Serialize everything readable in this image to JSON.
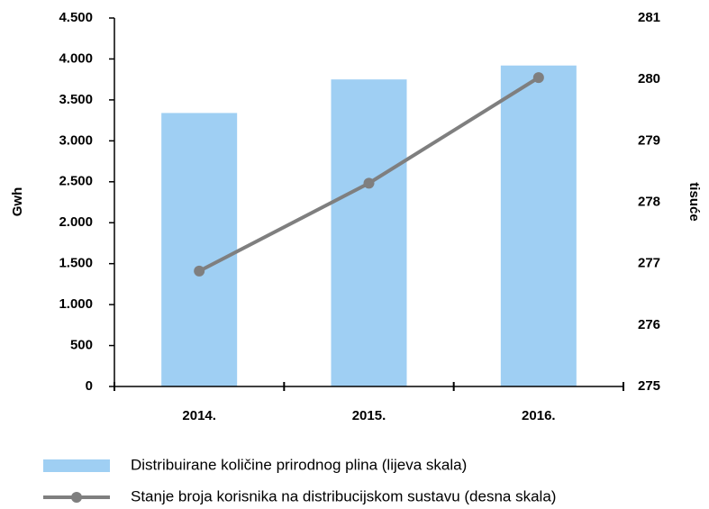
{
  "chart_data": {
    "type": "bar",
    "categories": [
      "2014.",
      "2015.",
      "2016."
    ],
    "series": [
      {
        "name": "Distribuirane količine prirodnog plina (lijeva skala)",
        "type": "bar",
        "color": "#9fcff3",
        "values": [
          3340,
          3750,
          3920
        ]
      },
      {
        "name": "Stanje broja korisnika na distribucijskom sustavu (desna skala)",
        "type": "line",
        "axis": "y2",
        "color": "#7f7f7f",
        "values": [
          276.88,
          278.31,
          280.03
        ]
      }
    ],
    "ylabel": "Gwh",
    "y2label": "tisuće",
    "ylim": [
      0,
      4500
    ],
    "yticks": [
      0,
      500,
      {
        "value": 1000,
        "label": "1.000"
      },
      {
        "value": 1500,
        "label": "1.500"
      },
      {
        "value": 2000,
        "label": "2.000"
      },
      {
        "value": 2500,
        "label": "2.500"
      },
      {
        "value": 3000,
        "label": "3.000"
      },
      {
        "value": 3500,
        "label": "3.500"
      },
      {
        "value": 4000,
        "label": "4.000"
      },
      {
        "value": 4500,
        "label": "4.500"
      }
    ],
    "y2lim": [
      275,
      281
    ],
    "y2ticks": [
      275,
      276,
      277,
      278,
      279,
      280,
      281
    ],
    "legend": "bottom"
  }
}
